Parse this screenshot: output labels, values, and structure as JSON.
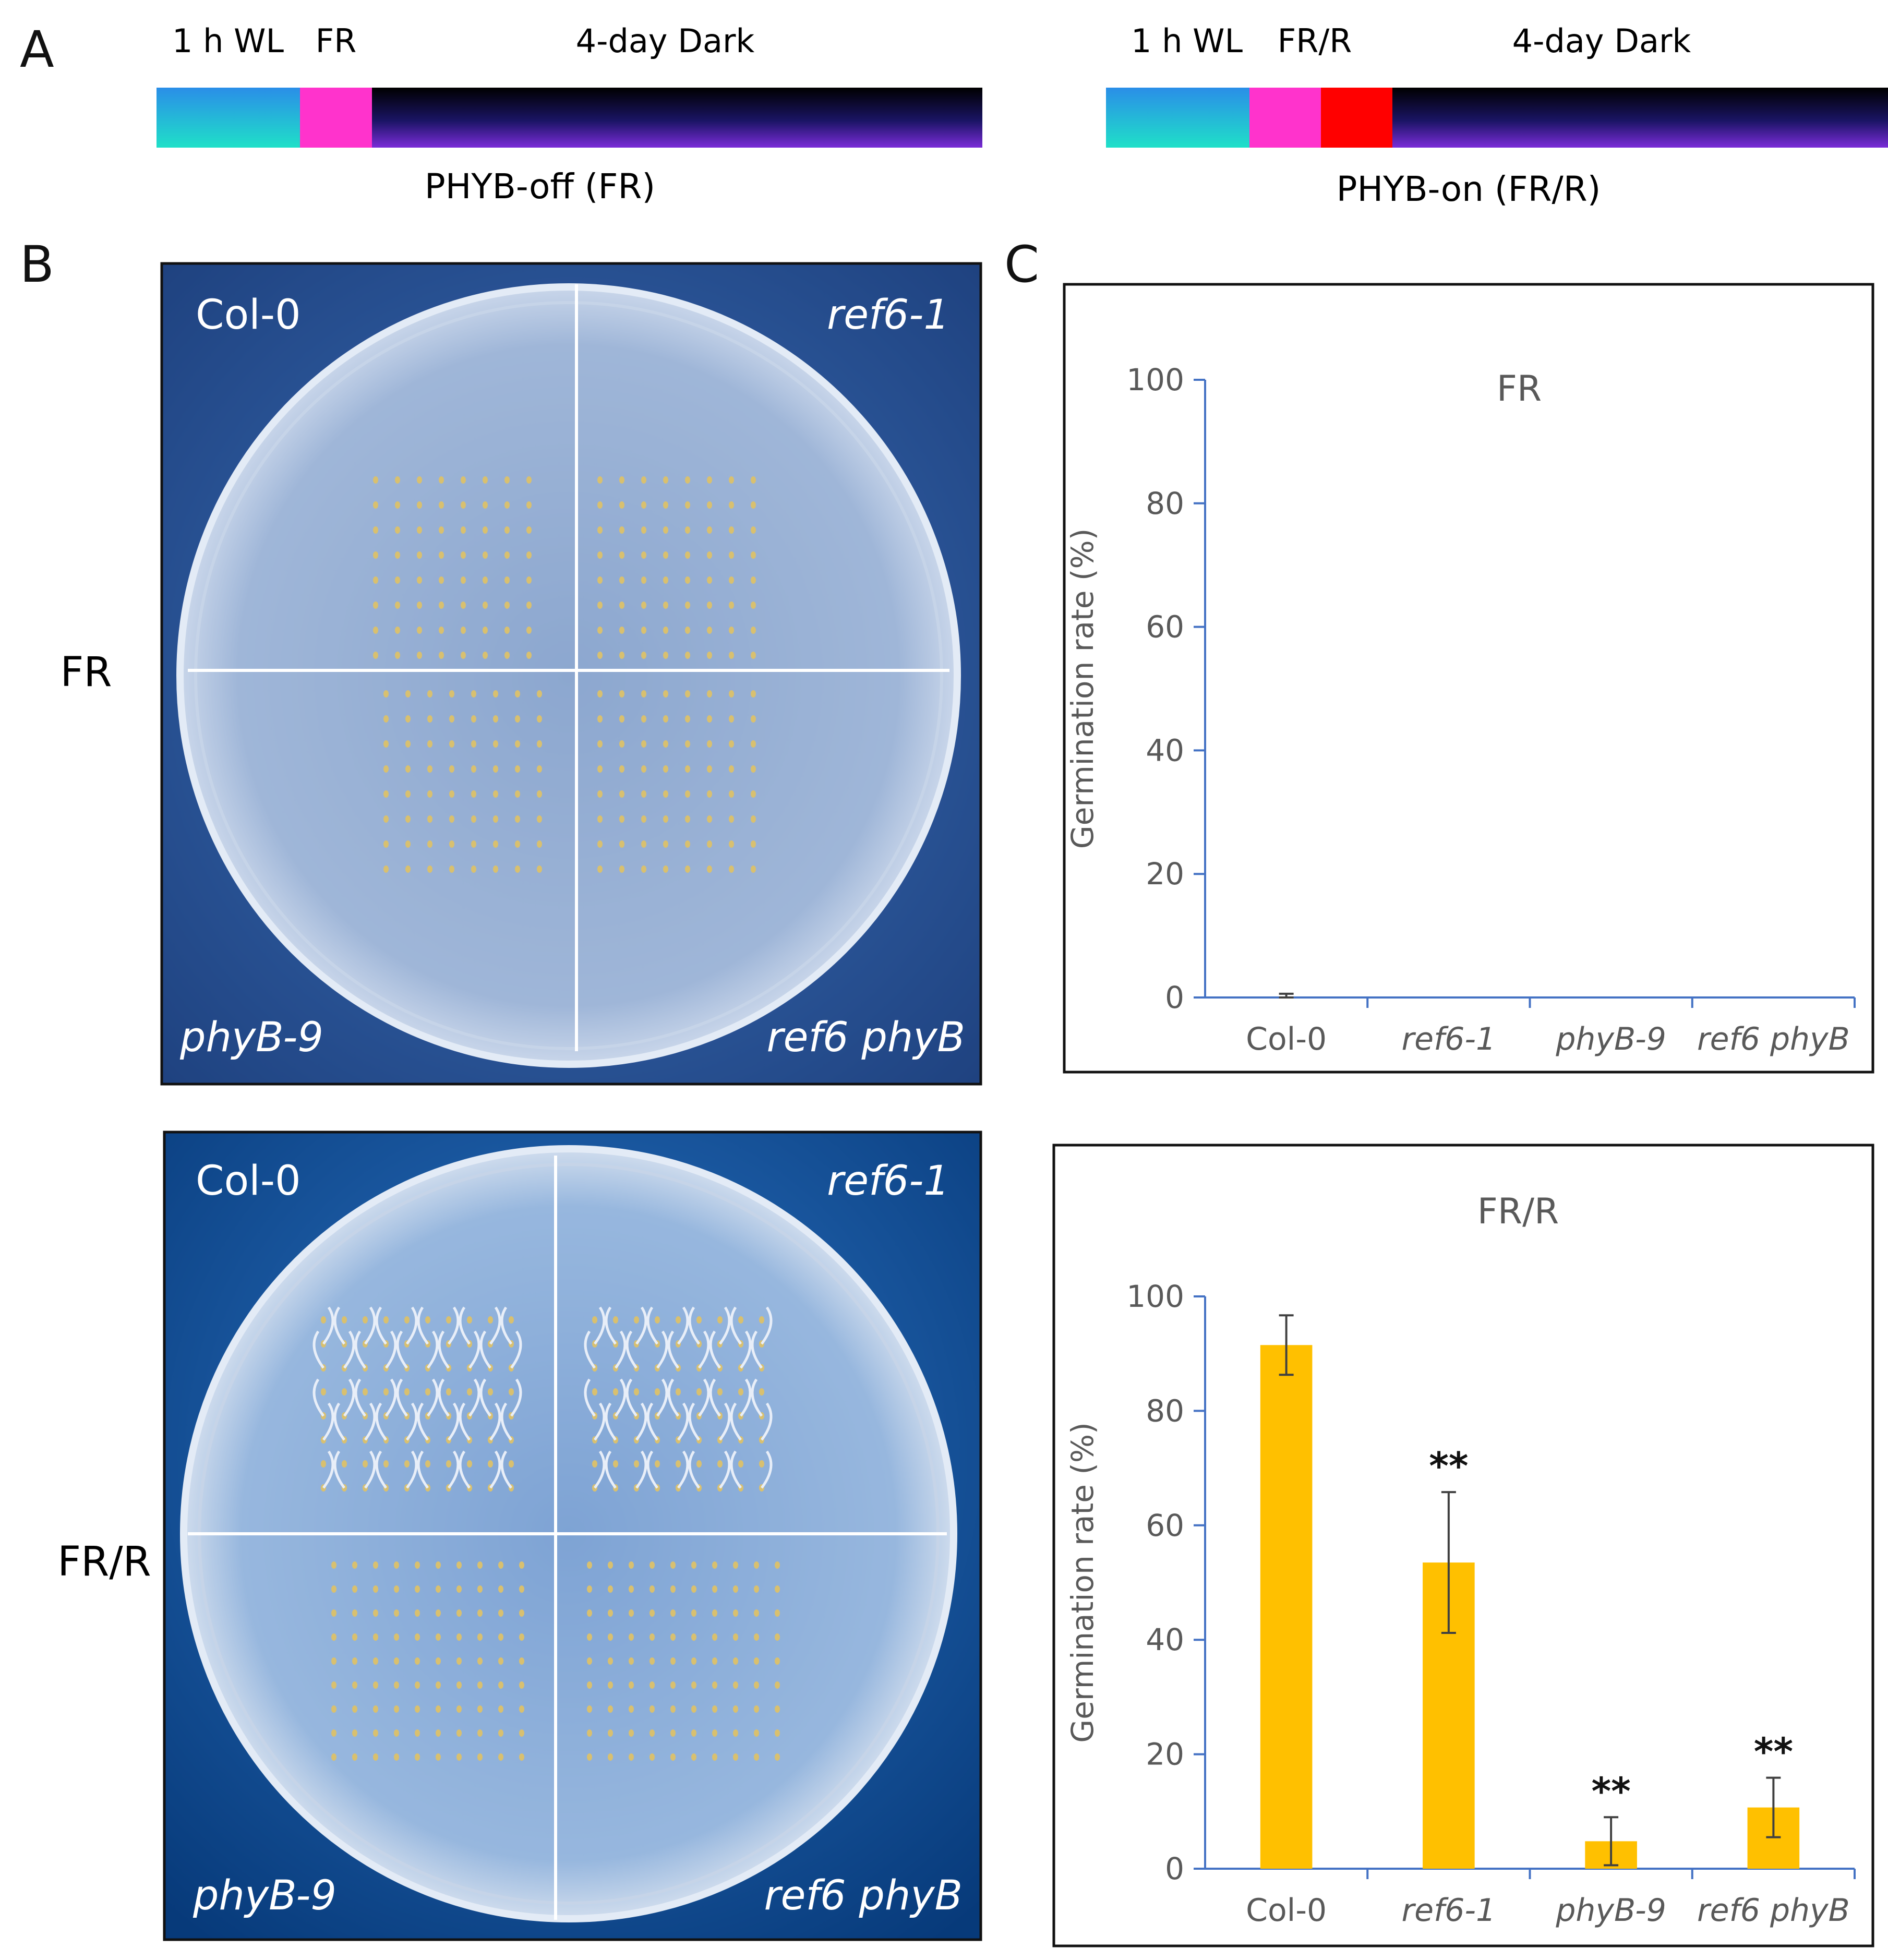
{
  "panel_labels": {
    "a": "A",
    "b": "B",
    "c": "C"
  },
  "timeline_left": {
    "steps": [
      "1 h WL",
      "FR",
      "4-day Dark"
    ],
    "caption": "PHYB-off (FR)"
  },
  "timeline_right": {
    "steps": [
      "1 h WL",
      "FR/R",
      "4-day Dark"
    ],
    "caption": "PHYB-on (FR/R)"
  },
  "row_labels": {
    "top": "FR",
    "bottom": "FR/R"
  },
  "plates": [
    {
      "treatment": "FR",
      "quadrants": [
        "Col-0",
        "ref6-1",
        "phyB-9",
        "ref6 phyB"
      ]
    },
    {
      "treatment": "FR/R",
      "quadrants": [
        "Col-0",
        "ref6-1",
        "phyB-9",
        "ref6 phyB"
      ]
    }
  ],
  "colors": {
    "plate_bg_top": "#244e8e",
    "plate_bg_bottom": "#0f4d8f",
    "bar": "#ffc000",
    "axis": "#4472c4",
    "white_light": "#22c8d8",
    "far_red": "#ff33cc",
    "red": "#ff0000",
    "dark": "#1a1464"
  },
  "chart_data": [
    {
      "type": "bar",
      "title": "FR",
      "categories": [
        "Col-0",
        "ref6-1",
        "phyB-9",
        "ref6 phyB"
      ],
      "values": [
        0,
        0,
        0,
        0
      ],
      "errors": [
        0.6,
        0,
        0,
        0
      ],
      "significance": [
        "",
        "",
        "",
        ""
      ],
      "ylabel": "Germination rate (%)",
      "ylim": [
        0,
        100
      ],
      "yticks": [
        "0",
        "20",
        "40",
        "60",
        "80",
        "100"
      ]
    },
    {
      "type": "bar",
      "title": "FR/R",
      "categories": [
        "Col-0",
        "ref6-1",
        "phyB-9",
        "ref6 phyB"
      ],
      "values": [
        91.5,
        53.5,
        4.8,
        10.7
      ],
      "errors": [
        5.2,
        12.3,
        4.2,
        5.2
      ],
      "significance": [
        "",
        "**",
        "**",
        "**"
      ],
      "ylabel": "Germination rate (%)",
      "ylim": [
        0,
        100
      ],
      "yticks": [
        "0",
        "20",
        "40",
        "60",
        "80",
        "100"
      ]
    }
  ]
}
